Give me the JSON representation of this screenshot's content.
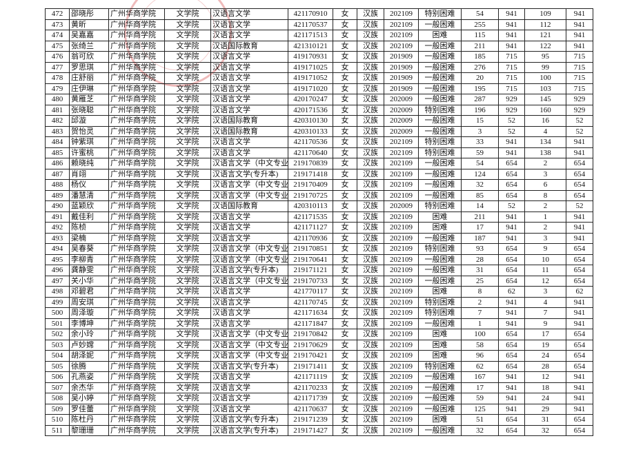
{
  "table": {
    "rows": [
      [
        "472",
        "邵晓彤",
        "广州华商学院",
        "文学院",
        "汉语言文学",
        "421170910",
        "女",
        "汉族",
        "202109",
        "特别困难",
        "54",
        "941",
        "109",
        "941"
      ],
      [
        "473",
        "黄昕",
        "广州华商学院",
        "文学院",
        "汉语言文学",
        "421170537",
        "女",
        "汉族",
        "202109",
        "一般困难",
        "255",
        "941",
        "112",
        "941"
      ],
      [
        "474",
        "吴嘉嘉",
        "广州华商学院",
        "文学院",
        "汉语言文学",
        "421171513",
        "女",
        "汉族",
        "202109",
        "困难",
        "115",
        "941",
        "121",
        "941"
      ],
      [
        "475",
        "张绮兰",
        "广州华商学院",
        "文学院",
        "汉语国际教育",
        "421310121",
        "女",
        "汉族",
        "202109",
        "一般困难",
        "211",
        "941",
        "122",
        "941"
      ],
      [
        "476",
        "翁可欣",
        "广州华商学院",
        "文学院",
        "汉语言文学",
        "419170931",
        "女",
        "汉族",
        "201909",
        "一般困难",
        "185",
        "715",
        "95",
        "715"
      ],
      [
        "477",
        "罗思琪",
        "广州华商学院",
        "文学院",
        "汉语言文学",
        "419171025",
        "女",
        "汉族",
        "201909",
        "一般困难",
        "276",
        "715",
        "99",
        "715"
      ],
      [
        "478",
        "庄舒丽",
        "广州华商学院",
        "文学院",
        "汉语言文学",
        "419171052",
        "女",
        "汉族",
        "201909",
        "一般困难",
        "20",
        "715",
        "100",
        "715"
      ],
      [
        "479",
        "庄伊琳",
        "广州华商学院",
        "文学院",
        "汉语言文学",
        "419171020",
        "女",
        "汉族",
        "201909",
        "一般困难",
        "195",
        "715",
        "103",
        "715"
      ],
      [
        "480",
        "黄雁芝",
        "广州华商学院",
        "文学院",
        "汉语言文学",
        "420170247",
        "女",
        "汉族",
        "202009",
        "一般困难",
        "287",
        "929",
        "145",
        "929"
      ],
      [
        "481",
        "张晓聪",
        "广州华商学院",
        "文学院",
        "汉语言文学",
        "420171536",
        "女",
        "汉族",
        "202009",
        "特别困难",
        "196",
        "929",
        "160",
        "929"
      ],
      [
        "482",
        "邱漩",
        "广州华商学院",
        "文学院",
        "汉语国际教育",
        "420310130",
        "女",
        "汉族",
        "202009",
        "一般困难",
        "15",
        "52",
        "16",
        "52"
      ],
      [
        "483",
        "贺怡灵",
        "广州华商学院",
        "文学院",
        "汉语国际教育",
        "420310133",
        "女",
        "汉族",
        "202009",
        "一般困难",
        "3",
        "52",
        "4",
        "52"
      ],
      [
        "484",
        "钟紫琪",
        "广州华商学院",
        "文学院",
        "汉语言文学",
        "421170536",
        "女",
        "汉族",
        "202109",
        "特别困难",
        "33",
        "941",
        "134",
        "941"
      ],
      [
        "485",
        "许蜜桃",
        "广州华商学院",
        "文学院",
        "汉语言文学",
        "421170640",
        "女",
        "汉族",
        "202109",
        "特别困难",
        "59",
        "941",
        "138",
        "941"
      ],
      [
        "486",
        "赖晓纯",
        "广州华商学院",
        "文学院",
        "汉语言文学（中文专业",
        "219170839",
        "女",
        "汉族",
        "202109",
        "一般困难",
        "54",
        "654",
        "2",
        "654"
      ],
      [
        "487",
        "肖翊",
        "广州华商学院",
        "文学院",
        "汉语言文学(专升本)",
        "219171418",
        "女",
        "汉族",
        "202109",
        "一般困难",
        "124",
        "654",
        "3",
        "654"
      ],
      [
        "488",
        "杨仪",
        "广州华商学院",
        "文学院",
        "汉语言文学（中文专业",
        "219170409",
        "女",
        "汉族",
        "202109",
        "一般困难",
        "32",
        "654",
        "6",
        "654"
      ],
      [
        "489",
        "潘慧清",
        "广州华商学院",
        "文学院",
        "汉语言文学（中文专业",
        "219170725",
        "女",
        "汉族",
        "202109",
        "一般困难",
        "85",
        "654",
        "8",
        "654"
      ],
      [
        "490",
        "蓝颖欣",
        "广州华商学院",
        "文学院",
        "汉语国际教育",
        "420310113",
        "女",
        "汉族",
        "202009",
        "特别困难",
        "14",
        "52",
        "2",
        "52"
      ],
      [
        "491",
        "戴佳利",
        "广州华商学院",
        "文学院",
        "汉语言文学",
        "421171535",
        "女",
        "汉族",
        "202109",
        "困难",
        "211",
        "941",
        "1",
        "941"
      ],
      [
        "492",
        "陈桢",
        "广州华商学院",
        "文学院",
        "汉语言文学",
        "421171127",
        "女",
        "汉族",
        "202109",
        "困难",
        "17",
        "941",
        "2",
        "941"
      ],
      [
        "493",
        "梁楠",
        "广州华商学院",
        "文学院",
        "汉语言文学",
        "421170936",
        "女",
        "汉族",
        "202109",
        "一般困难",
        "187",
        "941",
        "3",
        "941"
      ],
      [
        "494",
        "吴春葵",
        "广州华商学院",
        "文学院",
        "汉语言文学（中文专业",
        "219170851",
        "女",
        "汉族",
        "202109",
        "特别困难",
        "93",
        "654",
        "9",
        "654"
      ],
      [
        "495",
        "李柳青",
        "广州华商学院",
        "文学院",
        "汉语言文学（中文专业",
        "219170641",
        "女",
        "汉族",
        "202109",
        "一般困难",
        "28",
        "654",
        "10",
        "654"
      ],
      [
        "496",
        "龚静雯",
        "广州华商学院",
        "文学院",
        "汉语言文学(专升本)",
        "219171121",
        "女",
        "汉族",
        "202109",
        "一般困难",
        "31",
        "654",
        "11",
        "654"
      ],
      [
        "497",
        "关小华",
        "广州华商学院",
        "文学院",
        "汉语言文学（中文专业",
        "219170733",
        "女",
        "汉族",
        "202109",
        "一般困难",
        "25",
        "654",
        "12",
        "654"
      ],
      [
        "498",
        "邓碧君",
        "广州华商学院",
        "文学院",
        "汉语言文学",
        "421770117",
        "女",
        "汉族",
        "202109",
        "困难",
        "8",
        "62",
        "3",
        "62"
      ],
      [
        "499",
        "周安琪",
        "广州华商学院",
        "文学院",
        "汉语言文学",
        "421170745",
        "女",
        "汉族",
        "202109",
        "特别困难",
        "2",
        "941",
        "4",
        "941"
      ],
      [
        "500",
        "周泽璇",
        "广州华商学院",
        "文学院",
        "汉语言文学",
        "421171634",
        "女",
        "汉族",
        "202109",
        "特别困难",
        "7",
        "941",
        "7",
        "941"
      ],
      [
        "501",
        "李博坤",
        "广州华商学院",
        "文学院",
        "汉语言文学",
        "421171847",
        "女",
        "汉族",
        "202109",
        "一般困难",
        "1",
        "941",
        "9",
        "941"
      ],
      [
        "502",
        "余小玲",
        "广州华商学院",
        "文学院",
        "汉语言文学（中文专业",
        "219170842",
        "女",
        "汉族",
        "202109",
        "困难",
        "100",
        "654",
        "17",
        "654"
      ],
      [
        "503",
        "卢妙嫦",
        "广州华商学院",
        "文学院",
        "汉语言文学（中文专业",
        "219170629",
        "女",
        "汉族",
        "202109",
        "困难",
        "58",
        "654",
        "19",
        "654"
      ],
      [
        "504",
        "胡泽妮",
        "广州华商学院",
        "文学院",
        "汉语言文学（中文专业",
        "219170421",
        "女",
        "汉族",
        "202109",
        "困难",
        "96",
        "654",
        "24",
        "654"
      ],
      [
        "505",
        "徐腾",
        "广州华商学院",
        "文学院",
        "汉语言文学(专升本)",
        "219171411",
        "女",
        "汉族",
        "202109",
        "特别困难",
        "62",
        "654",
        "28",
        "654"
      ],
      [
        "506",
        "孔燕姿",
        "广州华商学院",
        "文学院",
        "汉语言文学",
        "421171119",
        "女",
        "汉族",
        "202109",
        "一般困难",
        "167",
        "941",
        "12",
        "941"
      ],
      [
        "507",
        "余杰华",
        "广州华商学院",
        "文学院",
        "汉语言文学",
        "421170233",
        "女",
        "汉族",
        "202109",
        "一般困难",
        "17",
        "941",
        "18",
        "941"
      ],
      [
        "508",
        "吴小婷",
        "广州华商学院",
        "文学院",
        "汉语言文学",
        "421171739",
        "女",
        "汉族",
        "202109",
        "一般困难",
        "59",
        "941",
        "24",
        "941"
      ],
      [
        "509",
        "罗佳蕾",
        "广州华商学院",
        "文学院",
        "汉语言文学",
        "421170637",
        "女",
        "汉族",
        "202109",
        "一般困难",
        "125",
        "941",
        "29",
        "941"
      ],
      [
        "510",
        "陈杜丹",
        "广州华商学院",
        "文学院",
        "汉语言文学(专升本)",
        "219171239",
        "女",
        "汉族",
        "202109",
        "困难",
        "51",
        "654",
        "31",
        "654"
      ],
      [
        "511",
        "黎珊珊",
        "广州华商学院",
        "文学院",
        "汉语言文学(专升本)",
        "219171427",
        "女",
        "汉族",
        "202109",
        "一般困难",
        "32",
        "654",
        "32",
        "654"
      ]
    ]
  }
}
